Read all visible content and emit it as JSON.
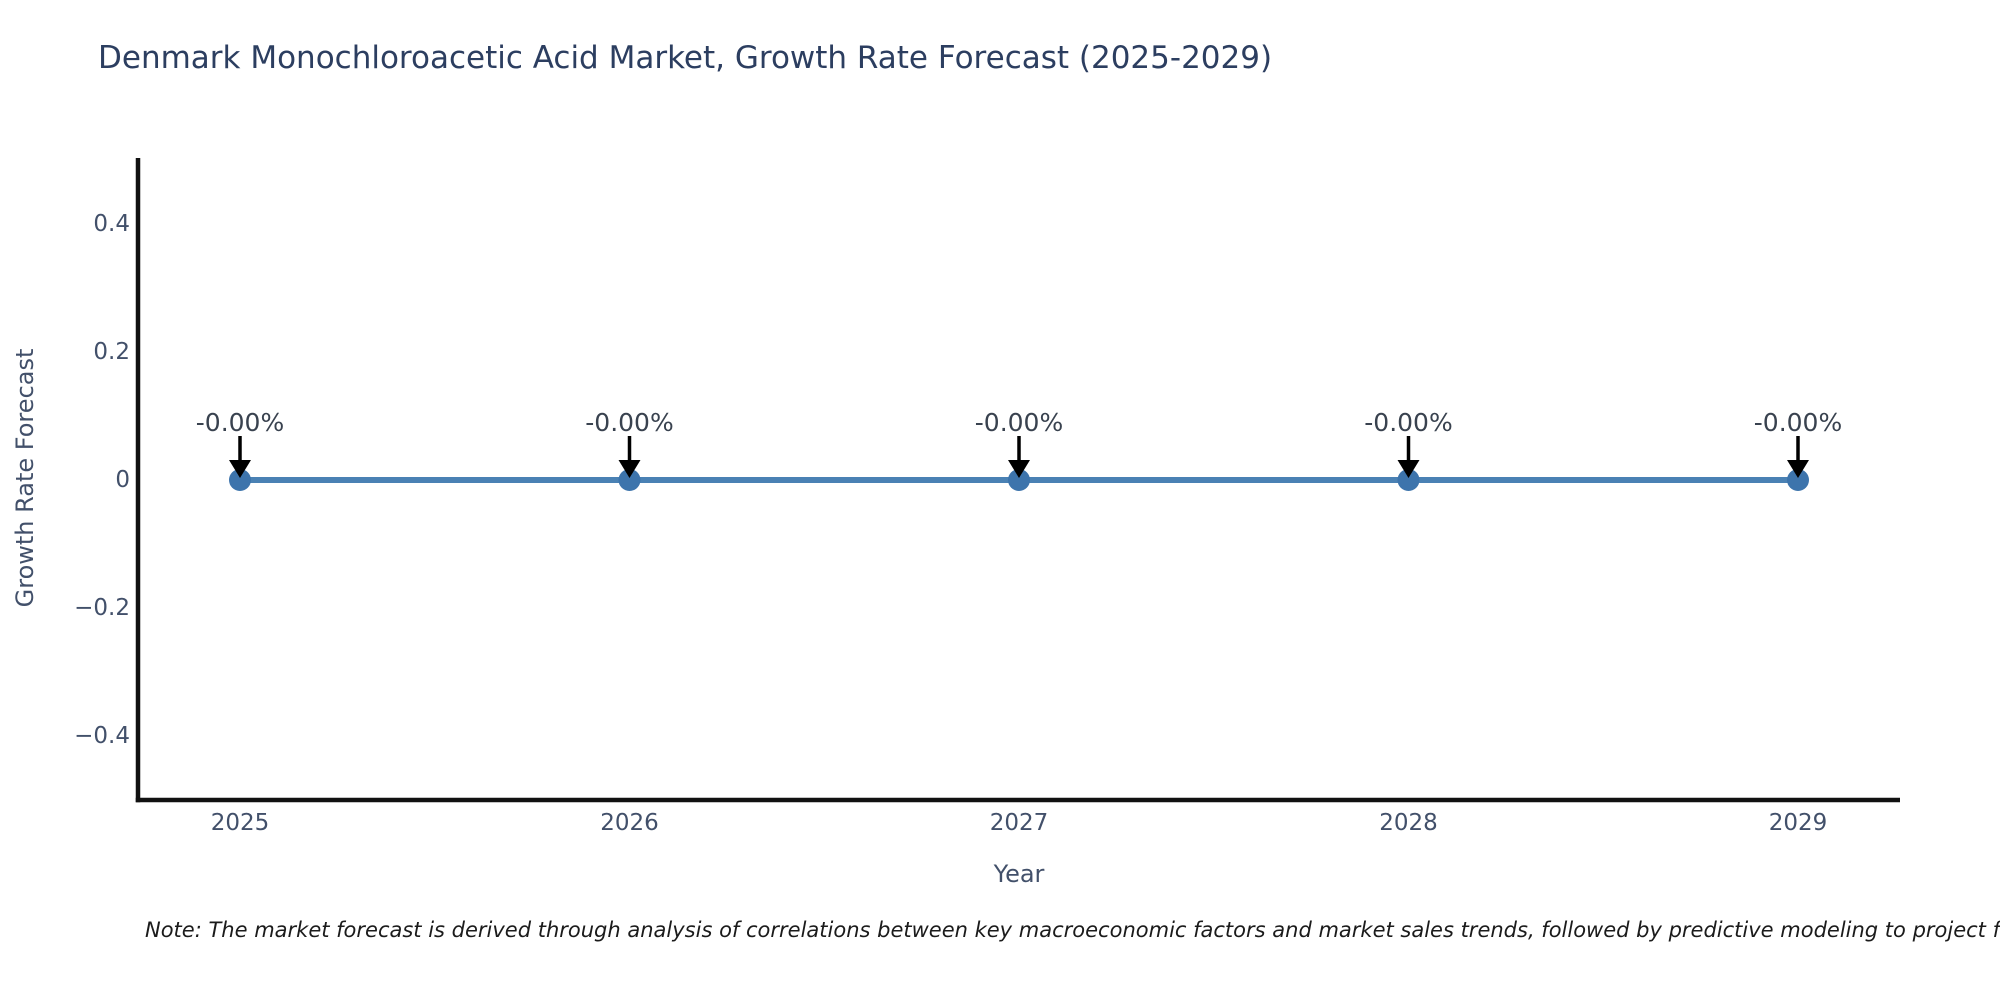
{
  "note": "Note: The market forecast is derived through analysis of correlations between key macroeconomic factors and market sales trends, followed by predictive modeling to project future sales",
  "chart_data": {
    "type": "line",
    "title": "Denmark Monochloroacetic Acid Market, Growth Rate Forecast (2025-2029)",
    "xlabel": "Year",
    "ylabel": "Growth Rate Forecast",
    "categories": [
      "2025",
      "2026",
      "2027",
      "2028",
      "2029"
    ],
    "series": [
      {
        "name": "Growth Rate Forecast",
        "values": [
          0,
          0,
          0,
          0,
          0
        ]
      }
    ],
    "point_labels": [
      "-0.00%",
      "-0.00%",
      "-0.00%",
      "-0.00%",
      "-0.00%"
    ],
    "yticks": [
      0.4,
      0.2,
      0,
      -0.2,
      -0.4
    ],
    "ytick_labels": [
      "0.4",
      "0.2",
      "0",
      "−0.2",
      "−0.4"
    ],
    "ylim": [
      -0.5,
      0.5
    ],
    "grid": false,
    "legend": false,
    "annotation_arrows": true,
    "colors": {
      "line": "#4a81b4",
      "marker": "#3d74ac",
      "arrow": "#000000",
      "spine": "#111111",
      "title": "#2c3e60",
      "axis_text": "#42506a",
      "annotation": "#39424f",
      "note_text": "#1b1b1b",
      "background": "#ffffff"
    }
  }
}
